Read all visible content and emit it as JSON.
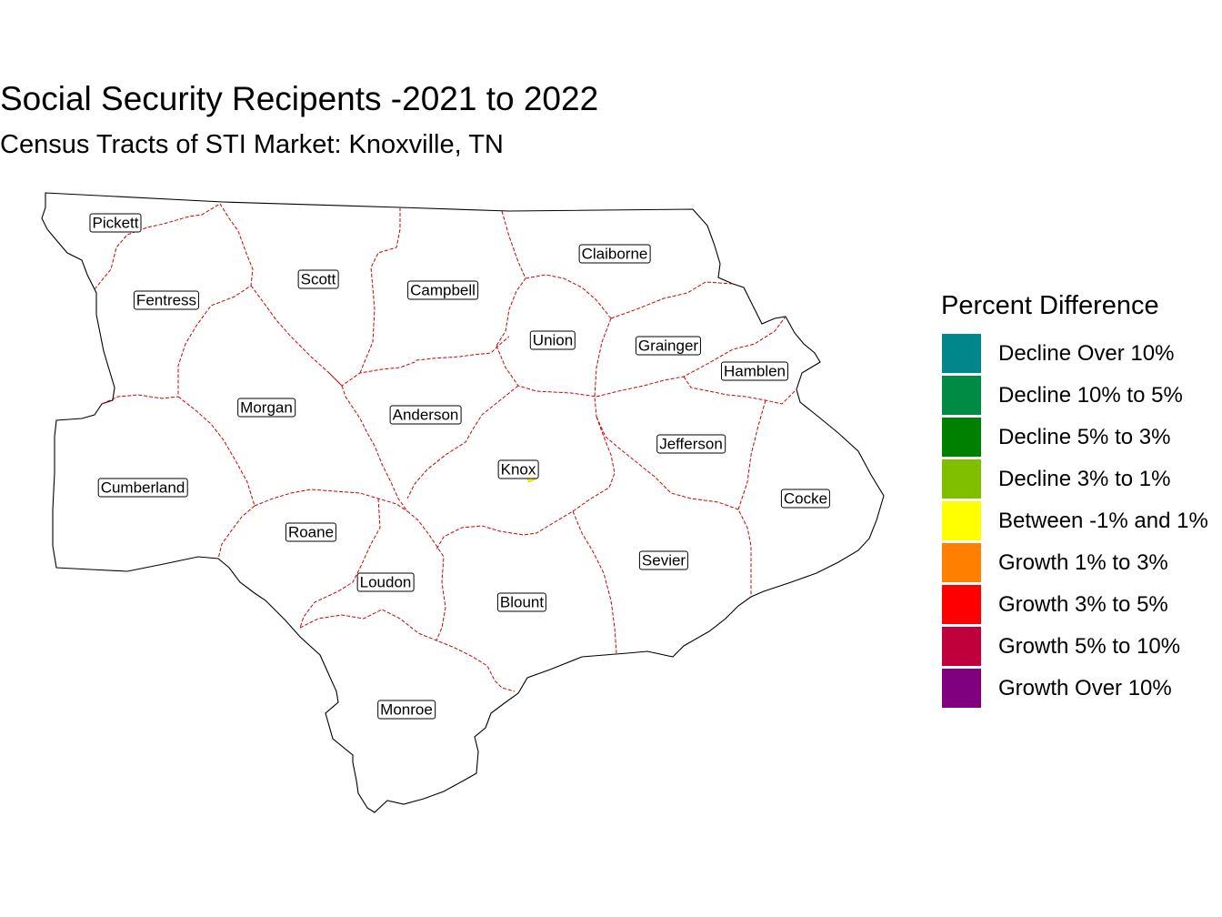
{
  "title": "Social Security Recipents -2021 to 2022",
  "subtitle": "Census Tracts of STI Market: Knoxville, TN",
  "legend": {
    "title": "Percent Difference",
    "items": [
      {
        "label": "Decline Over 10%",
        "color": "#00868B"
      },
      {
        "label": "Decline 10% to 5%",
        "color": "#008B45"
      },
      {
        "label": "Decline 5% to 3%",
        "color": "#008000"
      },
      {
        "label": "Decline 3% to 1%",
        "color": "#7FBF00"
      },
      {
        "label": "Between -1% and 1%",
        "color": "#FFFF00"
      },
      {
        "label": "Growth 1% to 3%",
        "color": "#FF7F00"
      },
      {
        "label": "Growth 3% to 5%",
        "color": "#FF0000"
      },
      {
        "label": "Growth 5% to 10%",
        "color": "#C0003C"
      },
      {
        "label": "Growth Over 10%",
        "color": "#800080"
      }
    ]
  },
  "counties": [
    "Pickett",
    "Scott",
    "Campbell",
    "Claiborne",
    "Fentress",
    "Union",
    "Grainger",
    "Hamblen",
    "Morgan",
    "Anderson",
    "Jefferson",
    "Knox",
    "Cumberland",
    "Cocke",
    "Roane",
    "Sevier",
    "Loudon",
    "Blount",
    "Monroe"
  ],
  "colors": {
    "outer_border": "#000000",
    "county_border": "#D00000",
    "highlight_tract": "#FFFF00"
  }
}
